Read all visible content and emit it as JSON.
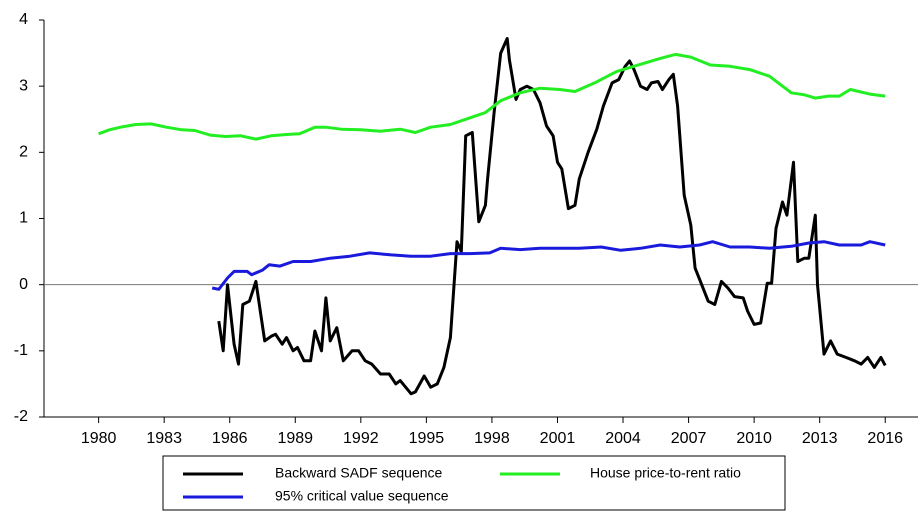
{
  "chart_data": {
    "type": "line",
    "xlim": [
      1977.5,
      2017.5
    ],
    "xticks": [
      1980,
      1983,
      1986,
      1989,
      1992,
      1995,
      1998,
      2001,
      2004,
      2007,
      2010,
      2013,
      2016
    ],
    "ylim": [
      -2,
      4
    ],
    "yticks": [
      -2,
      -1,
      0,
      1,
      2,
      3,
      4
    ],
    "reference_line": 0,
    "legend": "bottom",
    "series": [
      {
        "name": "Backward SADF sequence",
        "color": "#000000",
        "x": [
          1985.5,
          1985.7,
          1985.9,
          1986.2,
          1986.4,
          1986.6,
          1986.9,
          1987.2,
          1987.6,
          1987.9,
          1988.1,
          1988.4,
          1988.6,
          1988.9,
          1989.1,
          1989.4,
          1989.7,
          1989.9,
          1990.2,
          1990.4,
          1990.6,
          1990.9,
          1991.2,
          1991.6,
          1991.9,
          1992.2,
          1992.5,
          1992.9,
          1993.3,
          1993.6,
          1993.8,
          1994.3,
          1994.5,
          1994.9,
          1995.2,
          1995.5,
          1995.8,
          1996.1,
          1996.4,
          1996.6,
          1996.8,
          1997.1,
          1997.4,
          1997.7,
          1997.8,
          1998.1,
          1998.4,
          1998.7,
          1998.8,
          1999.1,
          1999.3,
          1999.6,
          1999.9,
          2000.2,
          2000.5,
          2000.8,
          2001.0,
          2001.2,
          2001.5,
          2001.8,
          2002.0,
          2002.4,
          2002.8,
          2003.1,
          2003.5,
          2003.8,
          2004.1,
          2004.3,
          2004.5,
          2004.8,
          2005.1,
          2005.3,
          2005.6,
          2005.8,
          2006.1,
          2006.3,
          2006.5,
          2006.8,
          2007.1,
          2007.3,
          2007.6,
          2007.9,
          2008.2,
          2008.5,
          2008.8,
          2009.1,
          2009.5,
          2009.7,
          2010.0,
          2010.3,
          2010.6,
          2010.8,
          2011.0,
          2011.3,
          2011.5,
          2011.8,
          2012.0,
          2012.3,
          2012.5,
          2012.8,
          2012.9,
          2013.2,
          2013.5,
          2013.8,
          2014.2,
          2014.6,
          2014.9,
          2015.2,
          2015.5,
          2015.8,
          2016.0
        ],
        "values": [
          -0.55,
          -1.0,
          0.0,
          -0.9,
          -1.2,
          -0.3,
          -0.25,
          0.05,
          -0.85,
          -0.78,
          -0.75,
          -0.9,
          -0.8,
          -1.0,
          -0.95,
          -1.15,
          -1.15,
          -0.7,
          -1.0,
          -0.2,
          -0.85,
          -0.65,
          -1.15,
          -1.0,
          -1.0,
          -1.15,
          -1.2,
          -1.35,
          -1.35,
          -1.5,
          -1.45,
          -1.65,
          -1.62,
          -1.38,
          -1.55,
          -1.5,
          -1.25,
          -0.8,
          0.65,
          0.5,
          2.25,
          2.3,
          0.95,
          1.2,
          1.6,
          2.6,
          3.5,
          3.72,
          3.4,
          2.8,
          2.95,
          3.0,
          2.95,
          2.75,
          2.4,
          2.25,
          1.85,
          1.75,
          1.15,
          1.2,
          1.6,
          2.0,
          2.35,
          2.7,
          3.05,
          3.1,
          3.3,
          3.38,
          3.25,
          3.0,
          2.95,
          3.05,
          3.07,
          2.95,
          3.1,
          3.18,
          2.7,
          1.35,
          0.9,
          0.25,
          0.0,
          -0.25,
          -0.3,
          0.05,
          -0.05,
          -0.18,
          -0.2,
          -0.4,
          -0.6,
          -0.58,
          0.02,
          0.02,
          0.85,
          1.25,
          1.05,
          1.85,
          0.35,
          0.4,
          0.4,
          1.05,
          0.0,
          -1.05,
          -0.85,
          -1.05,
          -1.1,
          -1.15,
          -1.2,
          -1.1,
          -1.25,
          -1.1,
          -1.22
        ]
      },
      {
        "name": "House price-to-rent ratio",
        "color": "#22ee22",
        "x": [
          1980.0,
          1980.5,
          1981.0,
          1981.7,
          1982.4,
          1983.1,
          1983.8,
          1984.4,
          1985.1,
          1985.8,
          1986.5,
          1987.2,
          1987.9,
          1988.6,
          1989.2,
          1989.9,
          1990.4,
          1991.1,
          1992.0,
          1992.9,
          1993.8,
          1994.5,
          1995.2,
          1996.1,
          1996.8,
          1997.7,
          1998.4,
          1999.3,
          2000.2,
          2001.1,
          2001.8,
          2002.7,
          2003.7,
          2004.8,
          2005.7,
          2006.4,
          2007.1,
          2008.0,
          2008.9,
          2009.8,
          2010.7,
          2011.7,
          2012.3,
          2012.8,
          2013.4,
          2013.9,
          2014.4,
          2015.3,
          2016.0
        ],
        "values": [
          2.28,
          2.34,
          2.38,
          2.42,
          2.43,
          2.38,
          2.34,
          2.33,
          2.26,
          2.24,
          2.25,
          2.2,
          2.25,
          2.27,
          2.28,
          2.38,
          2.38,
          2.35,
          2.34,
          2.32,
          2.35,
          2.3,
          2.38,
          2.42,
          2.5,
          2.6,
          2.78,
          2.9,
          2.97,
          2.95,
          2.92,
          3.05,
          3.22,
          3.33,
          3.42,
          3.48,
          3.44,
          3.32,
          3.3,
          3.25,
          3.15,
          2.9,
          2.87,
          2.82,
          2.85,
          2.85,
          2.95,
          2.88,
          2.85
        ]
      },
      {
        "name": "95% critical value sequence",
        "color": "#1a1adc",
        "x": [
          1985.2,
          1985.5,
          1985.9,
          1986.2,
          1986.8,
          1987.0,
          1987.5,
          1987.8,
          1988.3,
          1988.9,
          1989.7,
          1990.6,
          1991.5,
          1992.4,
          1993.4,
          1994.3,
          1995.2,
          1996.1,
          1997.0,
          1997.9,
          1998.4,
          1999.3,
          2000.2,
          2001.1,
          2002.0,
          2003.0,
          2003.9,
          2004.8,
          2005.7,
          2006.6,
          2007.5,
          2008.1,
          2008.9,
          2009.8,
          2010.7,
          2011.7,
          2012.5,
          2013.2,
          2013.9,
          2014.9,
          2015.3,
          2016.0
        ],
        "values": [
          -0.05,
          -0.07,
          0.1,
          0.2,
          0.2,
          0.15,
          0.22,
          0.3,
          0.28,
          0.35,
          0.35,
          0.4,
          0.43,
          0.48,
          0.45,
          0.43,
          0.43,
          0.47,
          0.47,
          0.48,
          0.55,
          0.53,
          0.55,
          0.55,
          0.55,
          0.57,
          0.52,
          0.55,
          0.6,
          0.57,
          0.6,
          0.65,
          0.57,
          0.57,
          0.55,
          0.58,
          0.63,
          0.65,
          0.6,
          0.6,
          0.65,
          0.6
        ]
      }
    ]
  }
}
